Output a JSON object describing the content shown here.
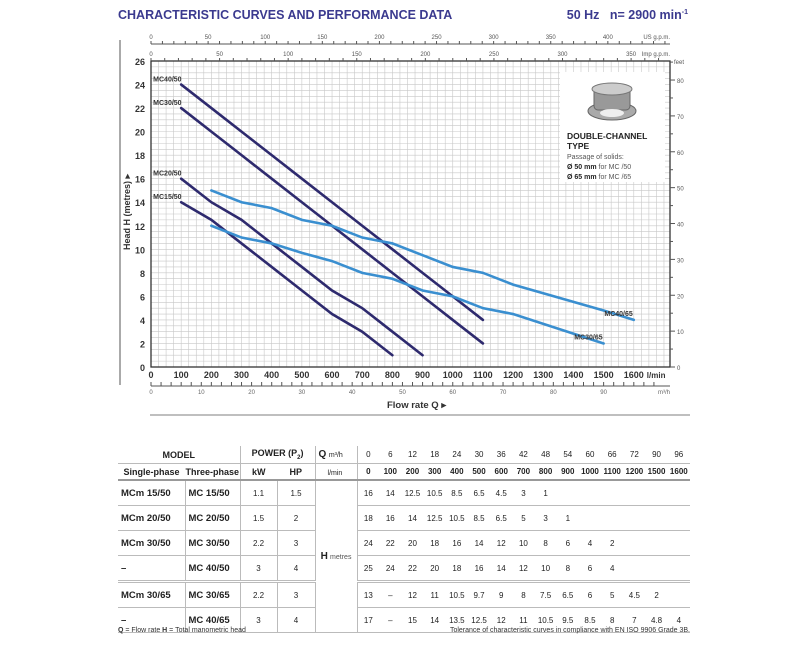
{
  "header": {
    "title": "CHARACTERISTIC CURVES AND PERFORMANCE DATA",
    "frequency": "50 Hz",
    "speed": "n= 2900 min",
    "speed_exp": "-1"
  },
  "chart_data": {
    "type": "line",
    "xlabel": "Flow rate Q",
    "ylabel": "Head H  (metres)",
    "x_unit": "l/min",
    "xlim": [
      0,
      1720
    ],
    "ylim": [
      0,
      26
    ],
    "x_ticks": [
      0,
      100,
      200,
      300,
      400,
      500,
      600,
      700,
      800,
      900,
      1000,
      1100,
      1200,
      1300,
      1400,
      1500,
      1600
    ],
    "y_ticks": [
      0,
      2,
      4,
      6,
      8,
      10,
      12,
      14,
      16,
      18,
      20,
      22,
      24,
      26
    ],
    "grid": true,
    "secondary_axes": {
      "us_gpm": {
        "label": "US g.p.m.",
        "ticks": [
          0,
          50,
          100,
          150,
          200,
          250,
          300,
          350,
          400
        ]
      },
      "imp_gpm": {
        "label": "Imp g.p.m.",
        "ticks": [
          0,
          50,
          100,
          150,
          200,
          250,
          300,
          350
        ]
      },
      "m3h": {
        "label": "m³/h",
        "ticks": [
          0,
          10,
          20,
          30,
          40,
          50,
          60,
          70,
          80,
          90
        ]
      },
      "feet": {
        "label": "feet",
        "ticks": [
          0,
          10,
          20,
          30,
          40,
          50,
          60,
          70,
          80
        ]
      }
    },
    "series": [
      {
        "name": "MC40/50",
        "color": "#2e2a6e",
        "x": [
          100,
          200,
          300,
          400,
          500,
          600,
          700,
          800,
          900,
          1000,
          1100
        ],
        "y": [
          24,
          22,
          20,
          18,
          16,
          14,
          12,
          10,
          8,
          6,
          4
        ],
        "label_pos": "start"
      },
      {
        "name": "MC30/50",
        "color": "#2e2a6e",
        "x": [
          100,
          200,
          300,
          400,
          500,
          600,
          700,
          800,
          900,
          1000,
          1100
        ],
        "y": [
          22,
          20,
          18,
          16,
          14,
          12,
          10,
          8,
          6,
          4,
          2
        ],
        "label_pos": "start"
      },
      {
        "name": "MC20/50",
        "color": "#2e2a6e",
        "x": [
          100,
          200,
          300,
          400,
          500,
          600,
          700,
          800,
          900
        ],
        "y": [
          16,
          14,
          12.5,
          10.5,
          8.5,
          6.5,
          5,
          3,
          1
        ],
        "label_pos": "start"
      },
      {
        "name": "MC15/50",
        "color": "#2e2a6e",
        "x": [
          100,
          200,
          300,
          400,
          500,
          600,
          700,
          800
        ],
        "y": [
          14,
          12.5,
          10.5,
          8.5,
          6.5,
          4.5,
          3,
          1
        ],
        "label_pos": "start"
      },
      {
        "name": "MC40/65",
        "color": "#3a8fd0",
        "x": [
          200,
          300,
          400,
          500,
          600,
          700,
          800,
          900,
          1000,
          1100,
          1200,
          1500,
          1600
        ],
        "y": [
          15,
          14,
          13.5,
          12.5,
          12,
          11,
          10.5,
          9.5,
          8.5,
          8,
          7,
          4.8,
          4
        ],
        "label_pos": "end"
      },
      {
        "name": "MC30/65",
        "color": "#3a8fd0",
        "x": [
          200,
          300,
          400,
          500,
          600,
          700,
          800,
          900,
          1000,
          1100,
          1200,
          1500
        ],
        "y": [
          12,
          11,
          10.5,
          9.7,
          9,
          8,
          7.5,
          6.5,
          6,
          5,
          4.5,
          2
        ],
        "label_pos": "end"
      }
    ]
  },
  "info": {
    "type": "DOUBLE-CHANNEL",
    "type2": "TYPE",
    "passage": "Passage of solids:",
    "d50": "Ø 50 mm",
    "d50_for": " for MC /50",
    "d65": "Ø 65 mm",
    "d65_for": " for MC /65"
  },
  "table": {
    "model": "MODEL",
    "power": "POWER (P2)",
    "q": "Q",
    "h": "H",
    "h_unit": "metres",
    "single": "Single-phase",
    "three": "Three-phase",
    "kw": "kW",
    "hp": "HP",
    "m3h": "m³/h",
    "lmin": "l/min",
    "q_m3h": [
      "0",
      "6",
      "12",
      "18",
      "24",
      "30",
      "36",
      "42",
      "48",
      "54",
      "60",
      "66",
      "72",
      "90",
      "96"
    ],
    "q_lmin": [
      "0",
      "100",
      "200",
      "300",
      "400",
      "500",
      "600",
      "700",
      "800",
      "900",
      "1000",
      "1100",
      "1200",
      "1500",
      "1600"
    ],
    "rows": [
      {
        "single": "MCm 15/50",
        "three": "MC 15/50",
        "kw": "1.1",
        "hp": "1.5",
        "h": [
          "16",
          "14",
          "12.5",
          "10.5",
          "8.5",
          "6.5",
          "4.5",
          "3",
          "1",
          "",
          "",
          "",
          "",
          "",
          ""
        ]
      },
      {
        "single": "MCm 20/50",
        "three": "MC 20/50",
        "kw": "1.5",
        "hp": "2",
        "h": [
          "18",
          "16",
          "14",
          "12.5",
          "10.5",
          "8.5",
          "6.5",
          "5",
          "3",
          "1",
          "",
          "",
          "",
          "",
          ""
        ]
      },
      {
        "single": "MCm 30/50",
        "three": "MC 30/50",
        "kw": "2.2",
        "hp": "3",
        "h": [
          "24",
          "22",
          "20",
          "18",
          "16",
          "14",
          "12",
          "10",
          "8",
          "6",
          "4",
          "2",
          "",
          "",
          ""
        ]
      },
      {
        "single": "–",
        "three": "MC 40/50",
        "kw": "3",
        "hp": "4",
        "h": [
          "25",
          "24",
          "22",
          "20",
          "18",
          "16",
          "14",
          "12",
          "10",
          "8",
          "6",
          "4",
          "",
          "",
          ""
        ]
      },
      {
        "single": "MCm 30/65",
        "three": "MC 30/65",
        "kw": "2.2",
        "hp": "3",
        "h": [
          "13",
          "–",
          "12",
          "11",
          "10.5",
          "9.7",
          "9",
          "8",
          "7.5",
          "6.5",
          "6",
          "5",
          "4.5",
          "2",
          ""
        ]
      },
      {
        "single": "–",
        "three": "MC 40/65",
        "kw": "3",
        "hp": "4",
        "h": [
          "17",
          "–",
          "15",
          "14",
          "13.5",
          "12.5",
          "12",
          "11",
          "10.5",
          "9.5",
          "8.5",
          "8",
          "7",
          "4.8",
          "4"
        ]
      }
    ]
  },
  "footer": {
    "q_key": "Q",
    "q_text": " = Flow rate  ",
    "h_key": "H",
    "h_text": " = Total manometric head",
    "tolerance": "Tolerance of characteristic curves in compliance with EN ISO 9906 Grade 3B."
  }
}
